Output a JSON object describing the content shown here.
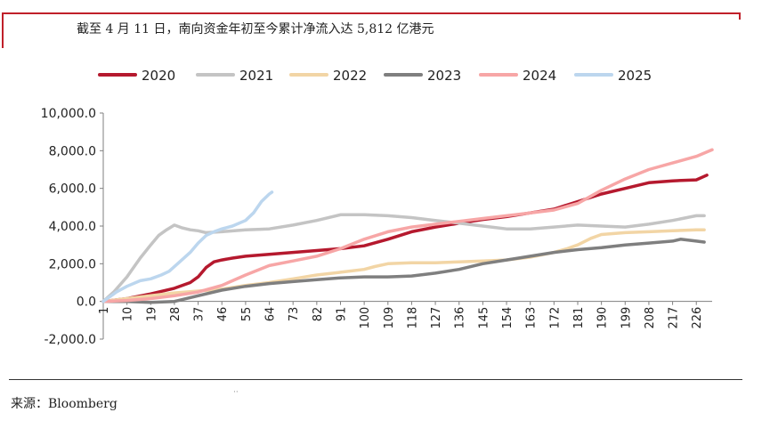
{
  "header": {
    "subtitle": "截至 4 月 11 日，南向资金年初至今累计净流入达 5,812 亿港元"
  },
  "footer": {
    "source": "来源：Bloomberg",
    "mark": "··"
  },
  "chart_data": {
    "type": "line",
    "title": "",
    "xlabel": "",
    "ylabel": "",
    "ylim": [
      -2000,
      10000
    ],
    "xlim": [
      1,
      232
    ],
    "grid": false,
    "legend_position": "top",
    "y_ticks": [
      "-2,000.0",
      "0.0",
      "2,000.0",
      "4,000.0",
      "6,000.0",
      "8,000.0",
      "10,000.0"
    ],
    "y_tick_values": [
      -2000,
      0,
      2000,
      4000,
      6000,
      8000,
      10000
    ],
    "x_ticks": [
      "1",
      "10",
      "19",
      "28",
      "37",
      "46",
      "55",
      "64",
      "73",
      "82",
      "91",
      "100",
      "109",
      "118",
      "127",
      "136",
      "145",
      "154",
      "163",
      "172",
      "181",
      "190",
      "199",
      "208",
      "217",
      "226"
    ],
    "x_tick_values": [
      1,
      10,
      19,
      28,
      37,
      46,
      55,
      64,
      73,
      82,
      91,
      100,
      109,
      118,
      127,
      136,
      145,
      154,
      163,
      172,
      181,
      190,
      199,
      208,
      217,
      226
    ],
    "series": [
      {
        "name": "2020",
        "color": "#b5192e",
        "width": 3.5,
        "x": [
          1,
          10,
          19,
          28,
          34,
          37,
          40,
          43,
          46,
          50,
          55,
          64,
          73,
          82,
          91,
          100,
          109,
          118,
          127,
          136,
          145,
          154,
          163,
          172,
          181,
          190,
          199,
          208,
          217,
          226,
          230
        ],
        "y": [
          0,
          150,
          400,
          700,
          1000,
          1300,
          1800,
          2100,
          2200,
          2300,
          2400,
          2500,
          2600,
          2700,
          2800,
          2950,
          3300,
          3700,
          3950,
          4150,
          4350,
          4500,
          4700,
          4900,
          5300,
          5700,
          6000,
          6300,
          6400,
          6450,
          6700
        ]
      },
      {
        "name": "2021",
        "color": "#c4c4c4",
        "width": 3.5,
        "x": [
          1,
          5,
          10,
          15,
          19,
          22,
          25,
          28,
          31,
          34,
          37,
          40,
          46,
          55,
          64,
          73,
          82,
          91,
          100,
          109,
          118,
          127,
          136,
          145,
          154,
          163,
          172,
          181,
          190,
          199,
          208,
          217,
          226,
          229
        ],
        "y": [
          0,
          500,
          1300,
          2300,
          3000,
          3500,
          3800,
          4050,
          3900,
          3800,
          3750,
          3650,
          3700,
          3800,
          3850,
          4050,
          4300,
          4600,
          4600,
          4550,
          4450,
          4300,
          4150,
          4000,
          3850,
          3850,
          3950,
          4050,
          4000,
          3950,
          4100,
          4300,
          4550,
          4550
        ]
      },
      {
        "name": "2022",
        "color": "#f2d5a5",
        "width": 3.5,
        "x": [
          1,
          10,
          19,
          28,
          37,
          46,
          55,
          64,
          73,
          82,
          91,
          100,
          104,
          109,
          118,
          127,
          136,
          145,
          154,
          163,
          172,
          177,
          181,
          186,
          190,
          199,
          208,
          217,
          226,
          229
        ],
        "y": [
          0,
          150,
          300,
          450,
          550,
          650,
          850,
          1000,
          1200,
          1400,
          1550,
          1700,
          1850,
          2000,
          2050,
          2050,
          2100,
          2150,
          2200,
          2350,
          2600,
          2800,
          3000,
          3350,
          3550,
          3650,
          3700,
          3750,
          3800,
          3800
        ]
      },
      {
        "name": "2023",
        "color": "#7f7f7f",
        "width": 3.5,
        "x": [
          1,
          10,
          19,
          28,
          37,
          46,
          55,
          64,
          73,
          82,
          91,
          100,
          109,
          118,
          127,
          136,
          145,
          154,
          163,
          172,
          181,
          190,
          199,
          208,
          217,
          220,
          226,
          229
        ],
        "y": [
          0,
          0,
          -50,
          0,
          300,
          600,
          800,
          950,
          1050,
          1150,
          1250,
          1300,
          1300,
          1350,
          1500,
          1700,
          2000,
          2200,
          2400,
          2600,
          2750,
          2850,
          3000,
          3100,
          3200,
          3300,
          3200,
          3150
        ]
      },
      {
        "name": "2024",
        "color": "#f7a6a6",
        "width": 3.5,
        "x": [
          1,
          10,
          19,
          28,
          37,
          46,
          55,
          64,
          73,
          82,
          91,
          100,
          109,
          118,
          127,
          136,
          145,
          154,
          163,
          172,
          181,
          190,
          199,
          208,
          217,
          226,
          232
        ],
        "y": [
          0,
          50,
          150,
          300,
          500,
          850,
          1400,
          1900,
          2150,
          2400,
          2800,
          3300,
          3700,
          3950,
          4100,
          4250,
          4400,
          4550,
          4700,
          4850,
          5200,
          5900,
          6500,
          7000,
          7350,
          7700,
          8050
        ]
      },
      {
        "name": "2025",
        "color": "#bcd6ee",
        "width": 3.5,
        "x": [
          1,
          6,
          10,
          15,
          19,
          23,
          26,
          30,
          34,
          37,
          40,
          43,
          46,
          50,
          55,
          58,
          61,
          64,
          65
        ],
        "y": [
          0,
          500,
          800,
          1100,
          1200,
          1400,
          1600,
          2100,
          2600,
          3100,
          3500,
          3700,
          3850,
          4000,
          4300,
          4700,
          5300,
          5700,
          5800
        ]
      }
    ]
  }
}
